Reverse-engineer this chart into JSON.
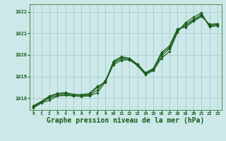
{
  "background_color": "#cce8e8",
  "grid_color": "#aacccc",
  "line_color": "#1a5c1a",
  "marker_color": "#1a5c1a",
  "xlabel": "Graphe pression niveau de la mer (hPa)",
  "xlabel_fontsize": 7.0,
  "xlim": [
    -0.5,
    23.5
  ],
  "ylim": [
    1017.45,
    1022.35
  ],
  "yticks": [
    1018,
    1019,
    1020,
    1021,
    1022
  ],
  "xticks": [
    0,
    1,
    2,
    3,
    4,
    5,
    6,
    7,
    8,
    9,
    10,
    11,
    12,
    13,
    14,
    15,
    16,
    17,
    18,
    19,
    20,
    21,
    22,
    23
  ],
  "series": [
    [
      1017.55,
      1017.77,
      1017.9,
      1018.1,
      1018.12,
      1018.1,
      1018.08,
      1018.1,
      1018.25,
      1018.75,
      1019.55,
      1019.75,
      1019.78,
      1019.5,
      1019.08,
      1019.28,
      1019.85,
      1020.15,
      1021.05,
      1021.5,
      1021.75,
      1021.95,
      1021.3,
      1021.35
    ],
    [
      1017.58,
      1017.8,
      1018.0,
      1018.12,
      1018.18,
      1018.1,
      1018.1,
      1018.12,
      1018.38,
      1018.82,
      1019.62,
      1019.82,
      1019.78,
      1019.52,
      1019.12,
      1019.32,
      1019.95,
      1020.28,
      1021.1,
      1021.42,
      1021.65,
      1021.88,
      1021.35,
      1021.38
    ],
    [
      1017.62,
      1017.83,
      1018.05,
      1018.18,
      1018.22,
      1018.15,
      1018.13,
      1018.18,
      1018.5,
      1018.78,
      1019.68,
      1019.88,
      1019.82,
      1019.56,
      1019.16,
      1019.36,
      1020.05,
      1020.35,
      1021.18,
      1021.35,
      1021.6,
      1021.82,
      1021.4,
      1021.42
    ],
    [
      1017.65,
      1017.85,
      1018.1,
      1018.22,
      1018.26,
      1018.18,
      1018.16,
      1018.22,
      1018.55,
      1018.72,
      1019.72,
      1019.92,
      1019.85,
      1019.58,
      1019.18,
      1019.38,
      1020.12,
      1020.42,
      1021.22,
      1021.28,
      1021.55,
      1021.78,
      1021.42,
      1021.45
    ]
  ]
}
